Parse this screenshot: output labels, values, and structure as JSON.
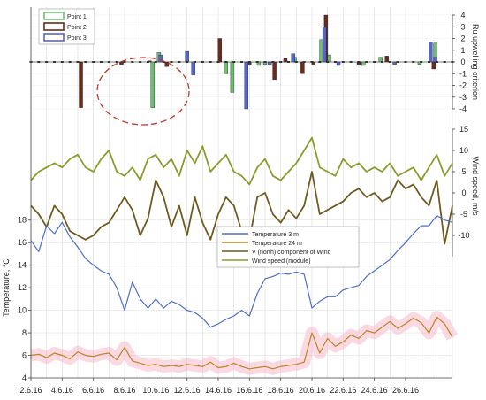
{
  "x_ticks": [
    "2.6.16",
    "4.6.16",
    "6.6.16",
    "8.6.16",
    "10.6.16",
    "12.6.16",
    "14.6.16",
    "16.6.16",
    "18.6.16",
    "20.6.16",
    "22.6.16",
    "24.6.16",
    "26.6.16"
  ],
  "colors": {
    "point1": "#6fbf73",
    "point2": "#6b2a1a",
    "point3": "#5566cc",
    "temp3": "#4f6fc4",
    "temp24": "#b8861f",
    "vnorth": "#6f5a1f",
    "wind": "#8e9a2c",
    "circle": "#c0392b",
    "highlight": "#f8b4c8"
  },
  "chart_data": [
    {
      "type": "bar",
      "ylabel": "Ru upwelling criterion",
      "ylim": [
        -4,
        4
      ],
      "y_ticks": [
        "4",
        "3",
        "2",
        "1",
        "0",
        "-1",
        "-2",
        "-3",
        "-4"
      ],
      "legend": "top-left",
      "series": [
        {
          "name": "Point 1",
          "days": [
            7.8,
            8.2,
            12.5,
            12.9,
            14.6,
            15.0,
            16.9,
            18.6,
            19.1,
            21.3,
            22.4,
            24.9,
            25.9
          ],
          "values": [
            -3.9,
            0.8,
            -1.0,
            -2.6,
            -0.3,
            -0.2,
            0.4,
            1.9,
            0.6,
            -0.3,
            0.4,
            -0.2,
            1.6
          ]
        },
        {
          "name": "Point 2",
          "days": [
            3.2,
            5.8,
            7.6,
            8.7,
            12.1,
            14.0,
            15.6,
            16.3,
            17.4,
            18.1,
            18.9,
            21.0,
            22.8,
            25.8
          ],
          "values": [
            -3.9,
            -0.2,
            0.1,
            -0.4,
            2.0,
            -0.2,
            -1.5,
            0.3,
            -1.0,
            -0.2,
            4.0,
            -0.2,
            0.5,
            -0.6
          ]
        },
        {
          "name": "Point 3",
          "days": [
            8.3,
            10.0,
            10.4,
            13.8,
            15.3,
            16.8,
            18.8,
            19.7,
            23.3,
            25.6,
            25.9
          ],
          "values": [
            0.6,
            0.9,
            -1.1,
            -4.0,
            -0.2,
            0.7,
            3.0,
            -0.3,
            -0.2,
            1.7,
            0.4
          ]
        }
      ]
    },
    {
      "type": "line",
      "ylabel": "Wind speed, m/s",
      "ylim": [
        -15,
        15
      ],
      "y_ticks": [
        "15",
        "10",
        "5",
        "0",
        "-5",
        "-10"
      ],
      "series": [
        {
          "name": "V (north) component of Wind",
          "days": [
            0,
            0.5,
            1,
            1.5,
            2,
            2.5,
            3,
            3.5,
            4,
            4.5,
            5,
            5.5,
            6,
            6.5,
            7,
            7.5,
            8,
            8.5,
            9,
            9.5,
            10,
            10.5,
            11,
            11.5,
            12,
            12.5,
            13,
            13.5,
            14,
            14.5,
            15,
            15.5,
            16,
            16.5,
            17,
            17.5,
            18,
            18.5,
            19,
            19.5,
            20,
            20.5,
            21,
            21.5,
            22,
            22.5,
            23,
            23.5,
            24,
            24.5,
            25,
            25.5,
            26,
            26.5,
            27
          ],
          "values": [
            -3,
            -5,
            -8,
            -3,
            -5,
            -9,
            -10,
            -11,
            -10,
            -8,
            -7,
            -4,
            -1,
            -4,
            -10,
            -6,
            3,
            -1,
            -8,
            -3,
            -10,
            -1,
            -7,
            -11,
            -5,
            -1,
            -3,
            -9,
            -11,
            -1,
            0,
            -5,
            -7,
            -4,
            -6,
            -3,
            5,
            -5,
            -4,
            -3,
            -2,
            0,
            1,
            -1,
            0,
            -2,
            -1,
            3,
            1,
            2,
            -1,
            -3,
            3,
            -12,
            -3
          ]
        },
        {
          "name": "Wind speed (module)",
          "days": [
            0,
            0.5,
            1,
            1.5,
            2,
            2.5,
            3,
            3.5,
            4,
            4.5,
            5,
            5.5,
            6,
            6.5,
            7,
            7.5,
            8,
            8.5,
            9,
            9.5,
            10,
            10.5,
            11,
            11.5,
            12,
            12.5,
            13,
            13.5,
            14,
            14.5,
            15,
            15.5,
            16,
            16.5,
            17,
            17.5,
            18,
            18.5,
            19,
            19.5,
            20,
            20.5,
            21,
            21.5,
            22,
            22.5,
            23,
            23.5,
            24,
            24.5,
            25,
            25.5,
            26,
            26.5,
            27
          ],
          "values": [
            3,
            5,
            6,
            7,
            6,
            8,
            9,
            6,
            5,
            8,
            10,
            5,
            4,
            6,
            3,
            8,
            9,
            6,
            8,
            4,
            10,
            7,
            11,
            5,
            7,
            9,
            5,
            4,
            2,
            6,
            8,
            4,
            3,
            5,
            7,
            10,
            13,
            6,
            5,
            4,
            8,
            6,
            7,
            5,
            6,
            5,
            7,
            4,
            5,
            6,
            3,
            6,
            9,
            4,
            7
          ]
        }
      ]
    },
    {
      "type": "line",
      "ylabel": "Temperature, °C",
      "ylim": [
        4,
        19
      ],
      "y_ticks": [
        "18",
        "16",
        "14",
        "12",
        "10",
        "8",
        "6",
        "4"
      ],
      "legend": "center",
      "series": [
        {
          "name": "Temperature 3 m",
          "days": [
            0,
            0.5,
            1,
            1.5,
            2,
            2.5,
            3,
            3.5,
            4,
            4.5,
            5,
            5.5,
            6,
            6.5,
            7,
            7.5,
            8,
            8.5,
            9,
            9.5,
            10,
            10.5,
            11,
            11.5,
            12,
            12.5,
            13,
            13.5,
            14,
            14.5,
            15,
            15.5,
            16,
            16.5,
            17,
            17.5,
            18,
            18.5,
            19,
            19.5,
            20,
            20.5,
            21,
            21.5,
            22,
            22.5,
            23,
            23.5,
            24,
            24.5,
            25,
            25.5,
            26,
            26.5,
            27
          ],
          "values": [
            16.2,
            15.2,
            17.5,
            16.8,
            17.8,
            16.5,
            15.6,
            14.6,
            14.0,
            13.5,
            13.2,
            12.0,
            10.0,
            12.5,
            11.0,
            10.2,
            11.0,
            10.2,
            10.8,
            10.5,
            10.0,
            9.8,
            9.3,
            8.5,
            8.8,
            9.2,
            9.5,
            10.0,
            9.5,
            11.5,
            12.8,
            13.0,
            13.3,
            13.2,
            13.4,
            13.2,
            10.2,
            10.8,
            11.2,
            11.2,
            11.8,
            12.0,
            12.2,
            13.0,
            13.5,
            14.0,
            14.5,
            15.3,
            16.0,
            16.8,
            17.5,
            17.5,
            18.4,
            18.0,
            17.8
          ]
        },
        {
          "name": "Temperature 24 m",
          "days": [
            0,
            0.5,
            1,
            1.5,
            2,
            2.5,
            3,
            3.5,
            4,
            4.5,
            5,
            5.5,
            6,
            6.5,
            7,
            7.5,
            8,
            8.5,
            9,
            9.5,
            10,
            10.5,
            11,
            11.5,
            12,
            12.5,
            13,
            13.5,
            14,
            14.5,
            15,
            15.5,
            16,
            16.5,
            17,
            17.5,
            18,
            18.5,
            19,
            19.5,
            20,
            20.5,
            21,
            21.5,
            22,
            22.5,
            23,
            23.5,
            24,
            24.5,
            25,
            25.5,
            26,
            26.5,
            27
          ],
          "values": [
            6.0,
            6.1,
            5.8,
            6.2,
            6.0,
            5.7,
            6.3,
            6.0,
            5.9,
            6.1,
            6.2,
            5.6,
            6.7,
            5.5,
            5.3,
            5.1,
            5.2,
            5.0,
            5.1,
            5.0,
            5.2,
            5.1,
            5.0,
            5.4,
            4.9,
            5.0,
            5.3,
            5.0,
            4.8,
            4.9,
            5.0,
            4.8,
            5.0,
            5.1,
            5.2,
            5.4,
            8.0,
            6.2,
            7.5,
            6.8,
            7.2,
            7.8,
            7.5,
            8.2,
            8.0,
            8.5,
            9.0,
            8.4,
            8.8,
            9.3,
            8.9,
            8.0,
            9.4,
            8.8,
            7.6
          ]
        }
      ]
    }
  ]
}
